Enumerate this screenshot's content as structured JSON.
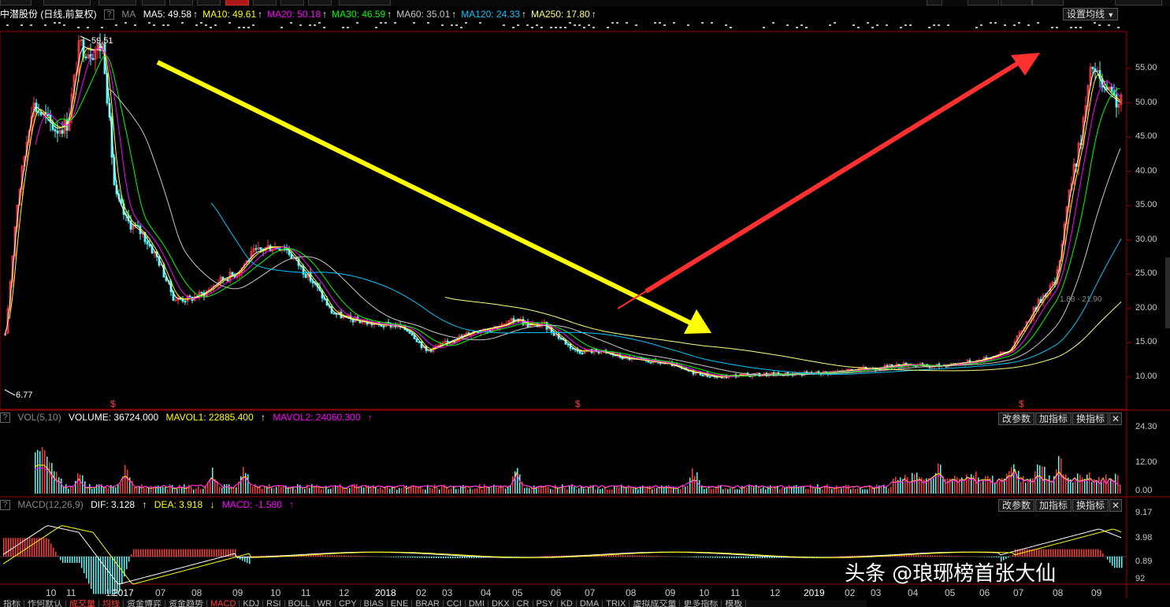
{
  "header": {
    "stock_name": "中潜股份 (日线,前复权)",
    "ma_label": "MA",
    "ma": [
      {
        "label": "MA5: 49.58",
        "color": "#ffffff"
      },
      {
        "label": "MA10: 49.61",
        "color": "#ffff00"
      },
      {
        "label": "MA20: 50.18",
        "color": "#ff00ff"
      },
      {
        "label": "MA30: 46.59",
        "color": "#00ff00"
      },
      {
        "label": "MA60: 35.01",
        "color": "#c8c8c8"
      },
      {
        "label": "MA120: 24.33",
        "color": "#00c8ff"
      },
      {
        "label": "MA250: 17.80",
        "color": "#ffff80"
      }
    ],
    "settings_button": "设置均线"
  },
  "price_panel": {
    "y_ticks": [
      "55.00",
      "50.00",
      "45.00",
      "40.00",
      "35.00",
      "30.00",
      "25.00",
      "20.00",
      "15.00",
      "10.00"
    ],
    "high_marker": "59.51",
    "low_marker": "6.77",
    "mid_marker": "1.88 - 21.90",
    "event_mark": "$"
  },
  "vol_panel": {
    "indicator": "VOL(5,10)",
    "volume": "VOLUME: 36724.000",
    "mavol1": "MAVOL1: 22885.400",
    "mavol2": "MAVOL2: 24060.300",
    "y_ticks": [
      "24.30",
      "12.00",
      "0.00"
    ]
  },
  "macd_panel": {
    "indicator": "MACD(12,26,9)",
    "dif": "DIF: 3.128",
    "dea": "DEA: 3.918",
    "macd": "MACD: -1.580",
    "y_ticks": [
      "9.17",
      "3.98",
      "0.89",
      "92"
    ]
  },
  "panel_buttons": {
    "modify": "改参数",
    "add": "加指标",
    "switch": "换指标",
    "close": "✕"
  },
  "x_axis": [
    "10",
    "11",
    "12",
    "2017",
    "07",
    "08",
    "09",
    "10",
    "11",
    "12",
    "2018",
    "02",
    "03",
    "04",
    "05",
    "06",
    "07",
    "08",
    "09",
    "10",
    "11",
    "12",
    "2019",
    "02",
    "03",
    "04",
    "05",
    "06",
    "07",
    "08",
    "09"
  ],
  "bottom_tabs": [
    "指标",
    "作何默认",
    "成交量",
    "均线",
    "资金博弈",
    "资金趋势",
    "MACD",
    "KDJ",
    "RSI",
    "BOLL",
    "WR",
    "CPY",
    "BIAS",
    "ENE",
    "BRAR",
    "CCI",
    "DMI",
    "DKX",
    "CR",
    "PSY",
    "KD",
    "DMA",
    "TRIX",
    "虚拟成交量",
    "更多指标",
    "模板"
  ],
  "watermark": "头条 @琅琊榜首张大仙",
  "colors": {
    "up": "#ff3a3a",
    "down": "#54fcfc",
    "yellow_arrow": "#ffff00",
    "red_arrow": "#ff3030"
  }
}
